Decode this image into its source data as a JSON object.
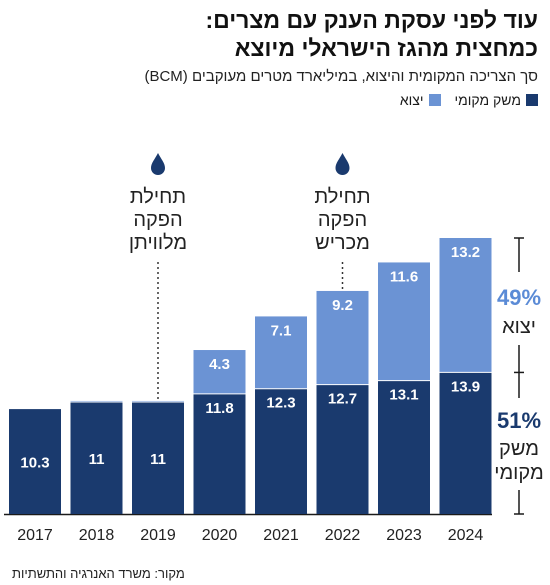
{
  "header": {
    "title_line1": "עוד לפני עסקת הענק עם מצרים:",
    "title_line2": "כמחצית מהגז הישראלי מיוצא",
    "subtitle": "סך הצריכה המקומית והיצוא, במיליארד מטרים מעוקבים (BCM)"
  },
  "legend": {
    "domestic": "משק מקומי",
    "export": "יצוא"
  },
  "source": "מקור: משרד האנרגיה והתשתיות",
  "colors": {
    "domestic": "#1a3a6e",
    "export": "#6b93d4",
    "accent": "#5b8bd6"
  },
  "chart_data": {
    "type": "bar",
    "stacked": true,
    "categories": [
      "2017",
      "2018",
      "2019",
      "2020",
      "2021",
      "2022",
      "2023",
      "2024"
    ],
    "series": [
      {
        "name": "משק מקומי",
        "values": [
          10.3,
          11,
          11,
          11.8,
          12.3,
          12.7,
          13.1,
          13.9
        ]
      },
      {
        "name": "יצוא",
        "values": [
          0,
          0.1,
          0.1,
          4.3,
          7.1,
          9.2,
          11.6,
          13.2
        ]
      }
    ],
    "value_labels": {
      "domestic": [
        "10.3",
        "11",
        "11",
        "11.8",
        "12.3",
        "12.7",
        "13.1",
        "13.9"
      ],
      "export": [
        "",
        "",
        "",
        "4.3",
        "7.1",
        "9.2",
        "11.6",
        "13.2"
      ]
    },
    "ylim": [
      0,
      27.1
    ],
    "grid": false,
    "annotations": [
      {
        "category": "2019",
        "lines": [
          "תחילת",
          "הפקה",
          "מלוויתן"
        ]
      },
      {
        "category": "2022",
        "lines": [
          "תחילת",
          "הפקה",
          "מכריש"
        ]
      }
    ],
    "shares": {
      "export_pct": "49%",
      "export_label": "יצוא",
      "domestic_pct": "51%",
      "domestic_label_lines": [
        "משק",
        "מקומי"
      ]
    }
  }
}
